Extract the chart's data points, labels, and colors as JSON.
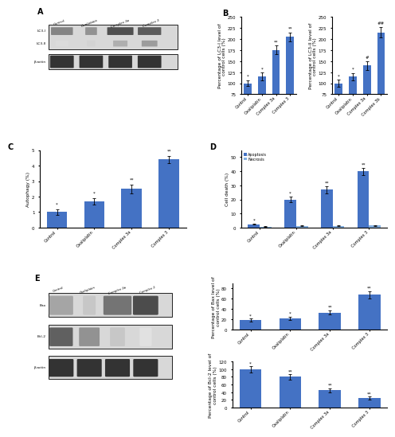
{
  "panel_B_left": {
    "title": "Percentage of LC3-I level of\ncontrol cells (%)",
    "categories": [
      "Control",
      "Oxaliplatin",
      "Complex 3a",
      "Complex 3"
    ],
    "values": [
      100,
      115,
      175,
      205
    ],
    "errors": [
      7,
      9,
      10,
      10
    ],
    "ylim": [
      75,
      250
    ],
    "yticks": [
      75,
      100,
      125,
      150,
      175,
      200,
      225,
      250
    ],
    "significance": [
      "*",
      "**",
      "**"
    ]
  },
  "panel_B_right": {
    "title": "Percentage of LC3-II level of\ncontrol cells (%)",
    "categories": [
      "Control",
      "Oxaliplatin",
      "Complex 3a",
      "Complex 3b"
    ],
    "values": [
      100,
      115,
      140,
      215
    ],
    "errors": [
      8,
      8,
      10,
      12
    ],
    "ylim": [
      75,
      250
    ],
    "yticks": [
      75,
      100,
      125,
      150,
      175,
      200,
      225,
      250
    ],
    "significance": [
      "*",
      "#",
      "##"
    ]
  },
  "panel_C": {
    "title": "Autophagy (%)",
    "categories": [
      "Control",
      "Oxaliplatin",
      "Complex 3a",
      "Complex 3"
    ],
    "values": [
      1.0,
      1.7,
      2.5,
      4.4
    ],
    "errors": [
      0.18,
      0.2,
      0.28,
      0.22
    ],
    "ylim": [
      0,
      5
    ],
    "yticks": [
      0,
      1,
      2,
      3,
      4,
      5
    ],
    "significance": [
      "*",
      "**",
      "**"
    ]
  },
  "panel_D": {
    "title": "Cell death (%)",
    "categories": [
      "Control",
      "Oxaliplatin",
      "Complex 3a",
      "Complex 3"
    ],
    "apoptosis": [
      2.5,
      20,
      27,
      40
    ],
    "necrosis": [
      0.8,
      1.2,
      1.2,
      1.5
    ],
    "apoptosis_errors": [
      0.4,
      2.0,
      2.5,
      2.5
    ],
    "necrosis_errors": [
      0.15,
      0.2,
      0.2,
      0.25
    ],
    "ylim": [
      0,
      55
    ],
    "yticks": [
      0,
      10,
      20,
      30,
      40,
      50
    ],
    "significance_apoptosis": [
      "*",
      "**",
      "**"
    ]
  },
  "panel_E_bax": {
    "title": "Percentage of Bax level of\ncontrol cells (%)",
    "categories": [
      "Control",
      "Oxaliplatin",
      "Complex 3a",
      "Complex 3"
    ],
    "values": [
      18,
      22,
      33,
      68
    ],
    "errors": [
      3,
      3,
      4,
      7
    ],
    "ylim": [
      0,
      90
    ],
    "yticks": [
      0,
      20,
      40,
      60,
      80
    ],
    "significance": [
      "*",
      "**",
      "**"
    ]
  },
  "panel_E_bcl2": {
    "title": "Percentage of Bcl-2 level of\ncontrol cells (%)",
    "categories": [
      "Control",
      "Oxaliplatin",
      "Complex 3a",
      "Complex 3"
    ],
    "values": [
      100,
      80,
      45,
      25
    ],
    "errors": [
      8,
      7,
      5,
      4
    ],
    "ylim": [
      0,
      120
    ],
    "yticks": [
      0,
      20,
      40,
      60,
      80,
      100,
      120
    ],
    "significance": [
      "**",
      "**",
      "**"
    ]
  },
  "bar_color": "#4472C4",
  "label_fontsize": 4.5,
  "tick_fontsize": 4.0,
  "title_fontsize": 4.5
}
